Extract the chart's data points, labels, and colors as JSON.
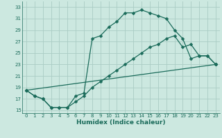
{
  "xlabel": "Humidex (Indice chaleur)",
  "bg_color": "#cce8e0",
  "grid_color": "#aaccc4",
  "line_color": "#1a6b5a",
  "xlim": [
    -0.5,
    23.5
  ],
  "ylim": [
    14.5,
    34.0
  ],
  "xticks": [
    0,
    1,
    2,
    3,
    4,
    5,
    6,
    7,
    8,
    9,
    10,
    11,
    12,
    13,
    14,
    15,
    16,
    17,
    18,
    19,
    20,
    21,
    22,
    23
  ],
  "yticks": [
    15,
    17,
    19,
    21,
    23,
    25,
    27,
    29,
    31,
    33
  ],
  "line1_x": [
    0,
    1,
    2,
    3,
    4,
    5,
    6,
    7,
    8,
    9,
    10,
    11,
    12,
    13,
    14,
    15,
    16,
    17,
    18,
    19,
    20,
    21,
    22,
    23
  ],
  "line1_y": [
    18.5,
    17.5,
    17.0,
    15.5,
    15.5,
    15.5,
    17.5,
    18.0,
    27.5,
    28.0,
    29.5,
    30.5,
    32.0,
    32.0,
    32.5,
    32.0,
    31.5,
    31.0,
    29.0,
    27.5,
    24.0,
    24.5,
    24.5,
    23.0
  ],
  "line2_x": [
    0,
    1,
    2,
    3,
    4,
    5,
    6,
    7,
    8,
    9,
    10,
    11,
    12,
    13,
    14,
    15,
    16,
    17,
    18,
    19,
    20,
    21,
    22,
    23
  ],
  "line2_y": [
    18.5,
    17.5,
    17.0,
    15.5,
    15.5,
    15.5,
    16.5,
    17.5,
    19.0,
    20.0,
    21.0,
    22.0,
    23.0,
    24.0,
    25.0,
    26.0,
    26.5,
    27.5,
    28.0,
    26.0,
    26.5,
    24.5,
    24.5,
    23.0
  ],
  "line3_x": [
    0,
    23
  ],
  "line3_y": [
    18.5,
    23.0
  ]
}
